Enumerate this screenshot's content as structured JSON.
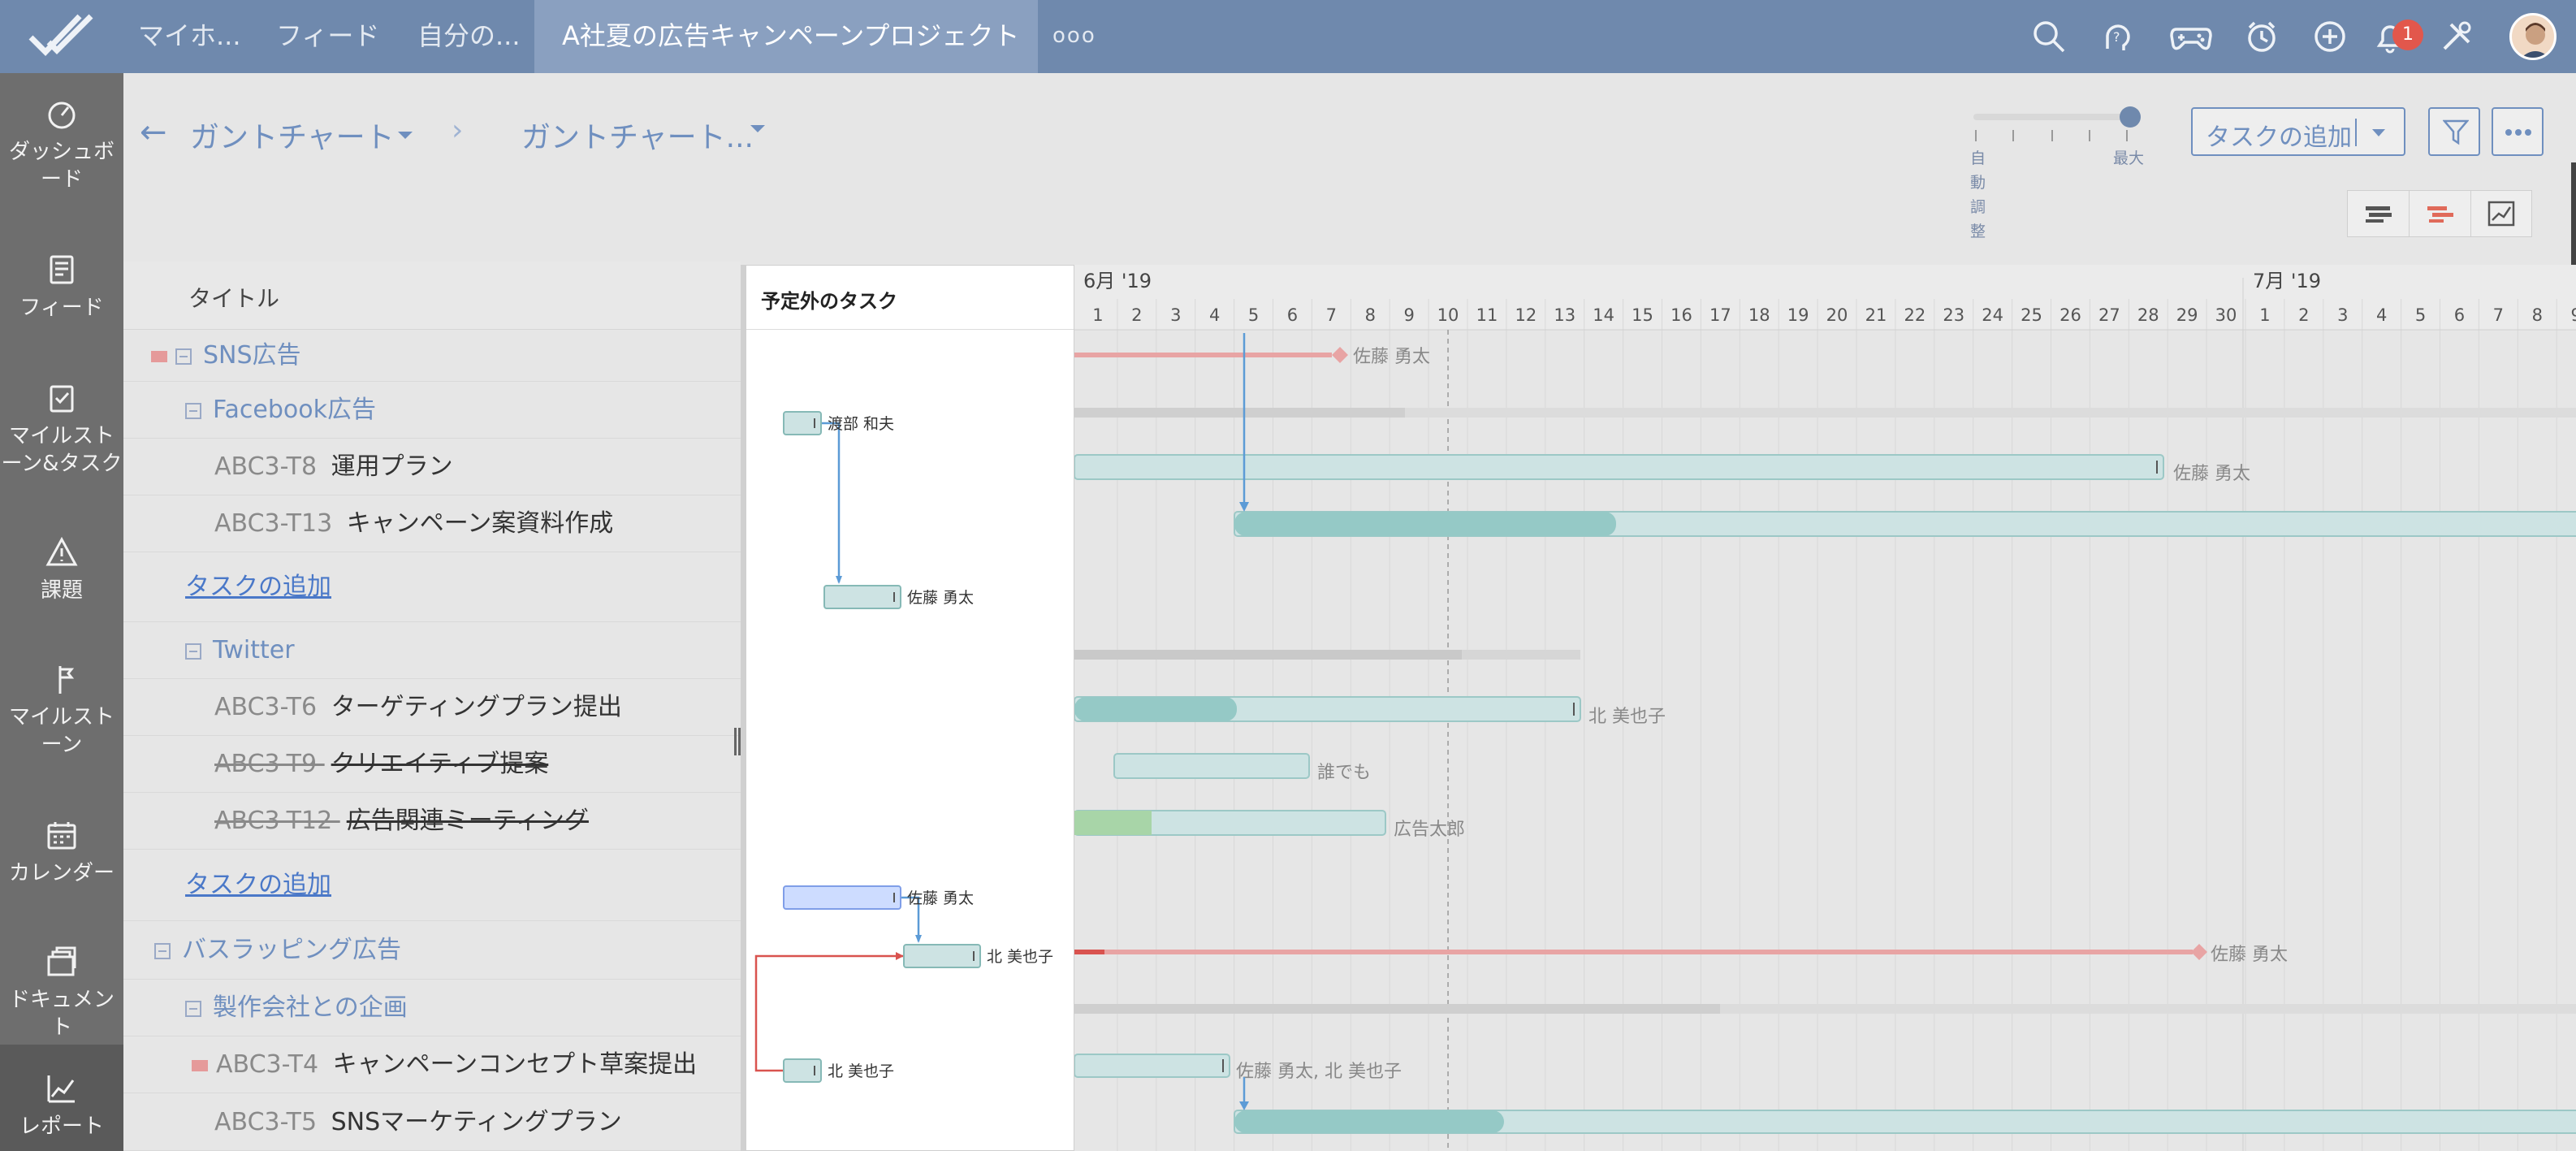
{
  "topbar": {
    "nav": [
      "マイホ...",
      "フィード",
      "自分の...",
      "A社夏の広告キャンペーンプロジェクト",
      "ooo"
    ],
    "notification_count": "1",
    "icons": [
      "search-icon",
      "help-icon",
      "game-icon",
      "timer-icon",
      "plus-icon",
      "bell-icon",
      "tools-icon"
    ]
  },
  "sidebar": {
    "items": [
      {
        "label": "ダッシュボード",
        "icon": "dashboard-icon"
      },
      {
        "label": "フィード",
        "icon": "feed-icon"
      },
      {
        "label": "マイルストーン&タスク",
        "icon": "milestone-task-icon"
      },
      {
        "label": "課題",
        "icon": "issue-icon"
      },
      {
        "label": "マイルストーン",
        "icon": "milestone-icon"
      },
      {
        "label": "カレンダー",
        "icon": "calendar-icon"
      },
      {
        "label": "ドキュメント",
        "icon": "document-icon"
      },
      {
        "label": "レポート",
        "icon": "report-icon"
      }
    ]
  },
  "toolbar": {
    "breadcrumb_1": "ガントチャート",
    "breadcrumb_2": "ガントチャート...",
    "zoom_auto": "自動調整",
    "zoom_max": "最大",
    "add_task_label": "タスクの追加"
  },
  "list": {
    "header": "タイトル",
    "add_task_link": "タスクの追加",
    "rows": [
      {
        "type": "group",
        "label": "SNS広告",
        "flag": true
      },
      {
        "type": "subgroup",
        "label": "Facebook広告"
      },
      {
        "type": "task",
        "id": "ABC3-T8",
        "name": "運用プラン"
      },
      {
        "type": "task",
        "id": "ABC3-T13",
        "name": "キャンペーン案資料作成"
      },
      {
        "type": "add",
        "label": "タスクの追加"
      },
      {
        "type": "subgroup",
        "label": "Twitter"
      },
      {
        "type": "task",
        "id": "ABC3-T6",
        "name": "ターゲティングプラン提出"
      },
      {
        "type": "task",
        "id": "ABC3-T9",
        "name": "クリエイティブ提案",
        "strike": true
      },
      {
        "type": "task",
        "id": "ABC3-T12",
        "name": "広告関連ミーティング",
        "strike": true
      },
      {
        "type": "add",
        "label": "タスクの追加"
      },
      {
        "type": "group",
        "label": "バスラッピング広告"
      },
      {
        "type": "subgroup",
        "label": "製作会社との企画"
      },
      {
        "type": "task",
        "id": "ABC3-T4",
        "name": "キャンペーンコンセプト草案提出",
        "flag": true
      },
      {
        "type": "task",
        "id": "ABC3-T5",
        "name": "SNSマーケティングプラン"
      }
    ]
  },
  "popup": {
    "title": "予定外のタスク",
    "items": [
      {
        "owner": "渡部 和夫"
      },
      {
        "owner": "佐藤 勇太"
      },
      {
        "owner": "佐藤 勇太"
      },
      {
        "owner": "北 美也子"
      },
      {
        "owner": "北 美也子"
      }
    ]
  },
  "gantt": {
    "month_labels": [
      "6月 '19",
      "7月 '19"
    ],
    "days": [
      "1",
      "2",
      "3",
      "4",
      "5",
      "6",
      "7",
      "8",
      "9",
      "10",
      "11",
      "12",
      "13",
      "14",
      "15",
      "16",
      "17",
      "18",
      "19",
      "20",
      "21",
      "22",
      "23",
      "24",
      "25",
      "26",
      "27",
      "28",
      "29",
      "30",
      "1",
      "2",
      "3",
      "4",
      "5",
      "6",
      "7",
      "8",
      "9"
    ],
    "today_index": 9,
    "bar_labels": [
      "佐藤 勇太",
      "佐藤 勇太",
      "北 美也子",
      "誰でも",
      "広告太郎",
      "佐藤 勇太",
      "佐藤 勇太, 北 美也子"
    ],
    "colors": {
      "teal_light": "#cde3e3",
      "teal_dark": "#95c9c6",
      "pink": "#e8a4a4",
      "red": "#d9534f",
      "green": "#a8d5a8",
      "gray": "#d6d6d6",
      "blue_light": "#cddcff"
    }
  }
}
